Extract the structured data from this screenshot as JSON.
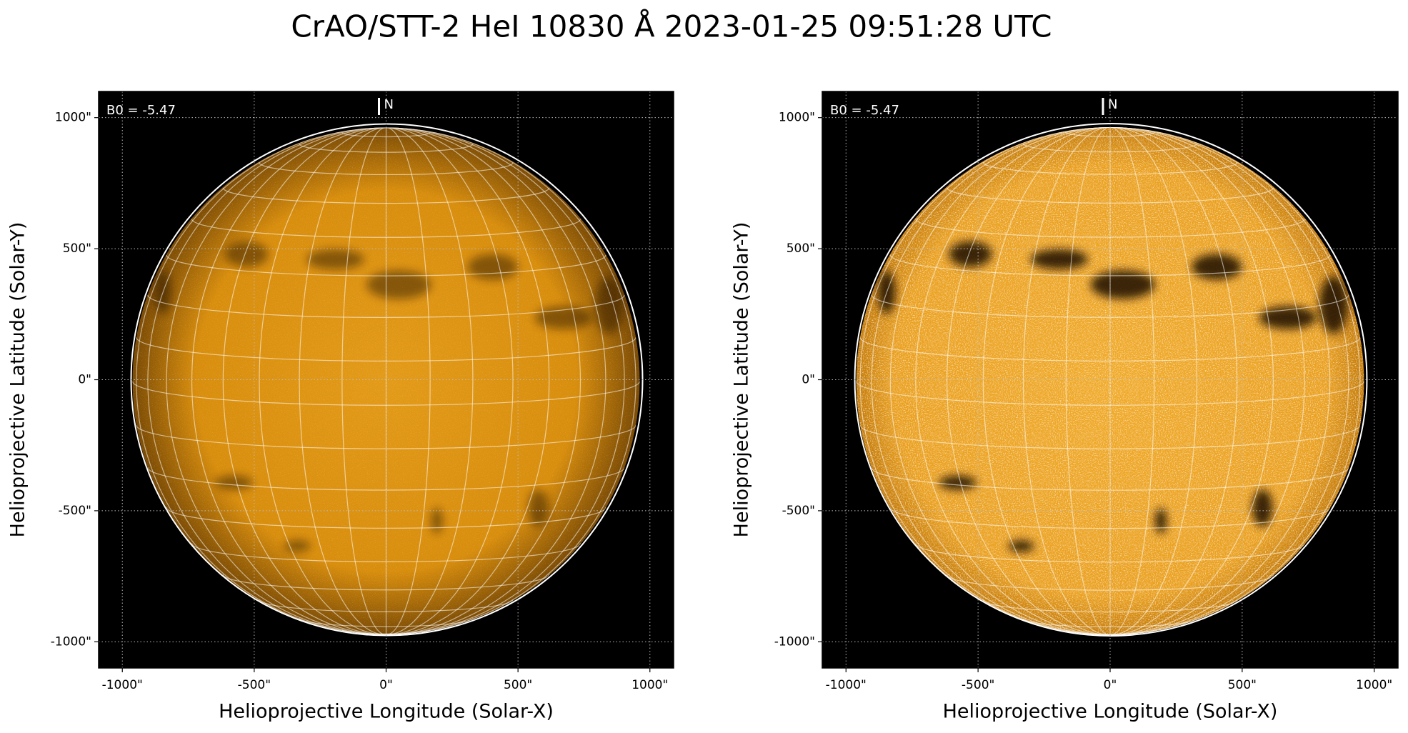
{
  "title": "CrAO/STT-2 HeI 10830 Å 2023-01-25 09:51:28 UTC",
  "chart_data": [
    {
      "type": "image",
      "xlabel": "Helioprojective Longitude (Solar-X)",
      "ylabel": "Helioprojective Latitude (Solar-Y)",
      "annotation": "B0 = -5.47",
      "north_label": "N",
      "xlim": [
        -1090,
        1090
      ],
      "ylim": [
        -1100,
        1100
      ],
      "xticks": [
        {
          "value": -1000,
          "label": "-1000\""
        },
        {
          "value": -500,
          "label": "-500\""
        },
        {
          "value": 0,
          "label": "0\""
        },
        {
          "value": 500,
          "label": "500\""
        },
        {
          "value": 1000,
          "label": "1000\""
        }
      ],
      "yticks": [
        {
          "value": -1000,
          "label": "-1000\""
        },
        {
          "value": -500,
          "label": "-500\""
        },
        {
          "value": 0,
          "label": "0\""
        },
        {
          "value": 500,
          "label": "500\""
        },
        {
          "value": 1000,
          "label": "1000\""
        }
      ],
      "grid": true
    },
    {
      "type": "image",
      "xlabel": "Helioprojective Longitude (Solar-X)",
      "ylabel": "Helioprojective Latitude (Solar-Y)",
      "annotation": "B0 = -5.47",
      "north_label": "N",
      "xlim": [
        -1090,
        1090
      ],
      "ylim": [
        -1100,
        1100
      ],
      "xticks": [
        {
          "value": -1000,
          "label": "-1000\""
        },
        {
          "value": -500,
          "label": "-500\""
        },
        {
          "value": 0,
          "label": "0\""
        },
        {
          "value": 500,
          "label": "500\""
        },
        {
          "value": 1000,
          "label": "1000\""
        }
      ],
      "yticks": [
        {
          "value": -1000,
          "label": "-1000\""
        },
        {
          "value": -500,
          "label": "-500\""
        },
        {
          "value": 0,
          "label": "0\""
        },
        {
          "value": 500,
          "label": "500\""
        },
        {
          "value": 1000,
          "label": "1000\""
        }
      ],
      "grid": true
    }
  ]
}
